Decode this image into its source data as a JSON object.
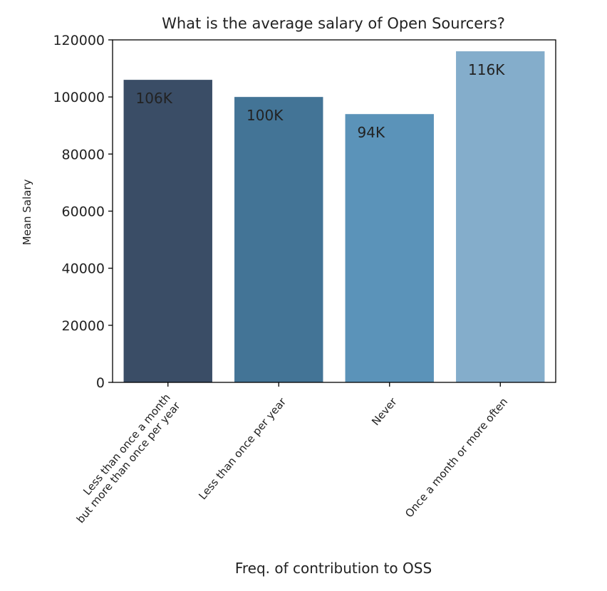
{
  "chart_data": {
    "type": "bar",
    "title": "What is the average salary of Open Sourcers?",
    "xlabel": "Freq. of contribution to OSS",
    "ylabel": "Mean Salary",
    "categories": [
      [
        "Less than once a month",
        "but more than once per year"
      ],
      [
        "Less than once per year"
      ],
      [
        "Never"
      ],
      [
        "Once a month or more often"
      ]
    ],
    "values": [
      106000,
      100000,
      94000,
      116000
    ],
    "data_labels": [
      "106K",
      "100K",
      "94K",
      "116K"
    ],
    "colors": [
      "#3a4d66",
      "#437496",
      "#5b93b9",
      "#84adcb"
    ],
    "ylim": [
      0,
      120000
    ],
    "yticks": [
      0,
      20000,
      40000,
      60000,
      80000,
      100000,
      120000
    ],
    "grid": false,
    "legend": "none"
  }
}
